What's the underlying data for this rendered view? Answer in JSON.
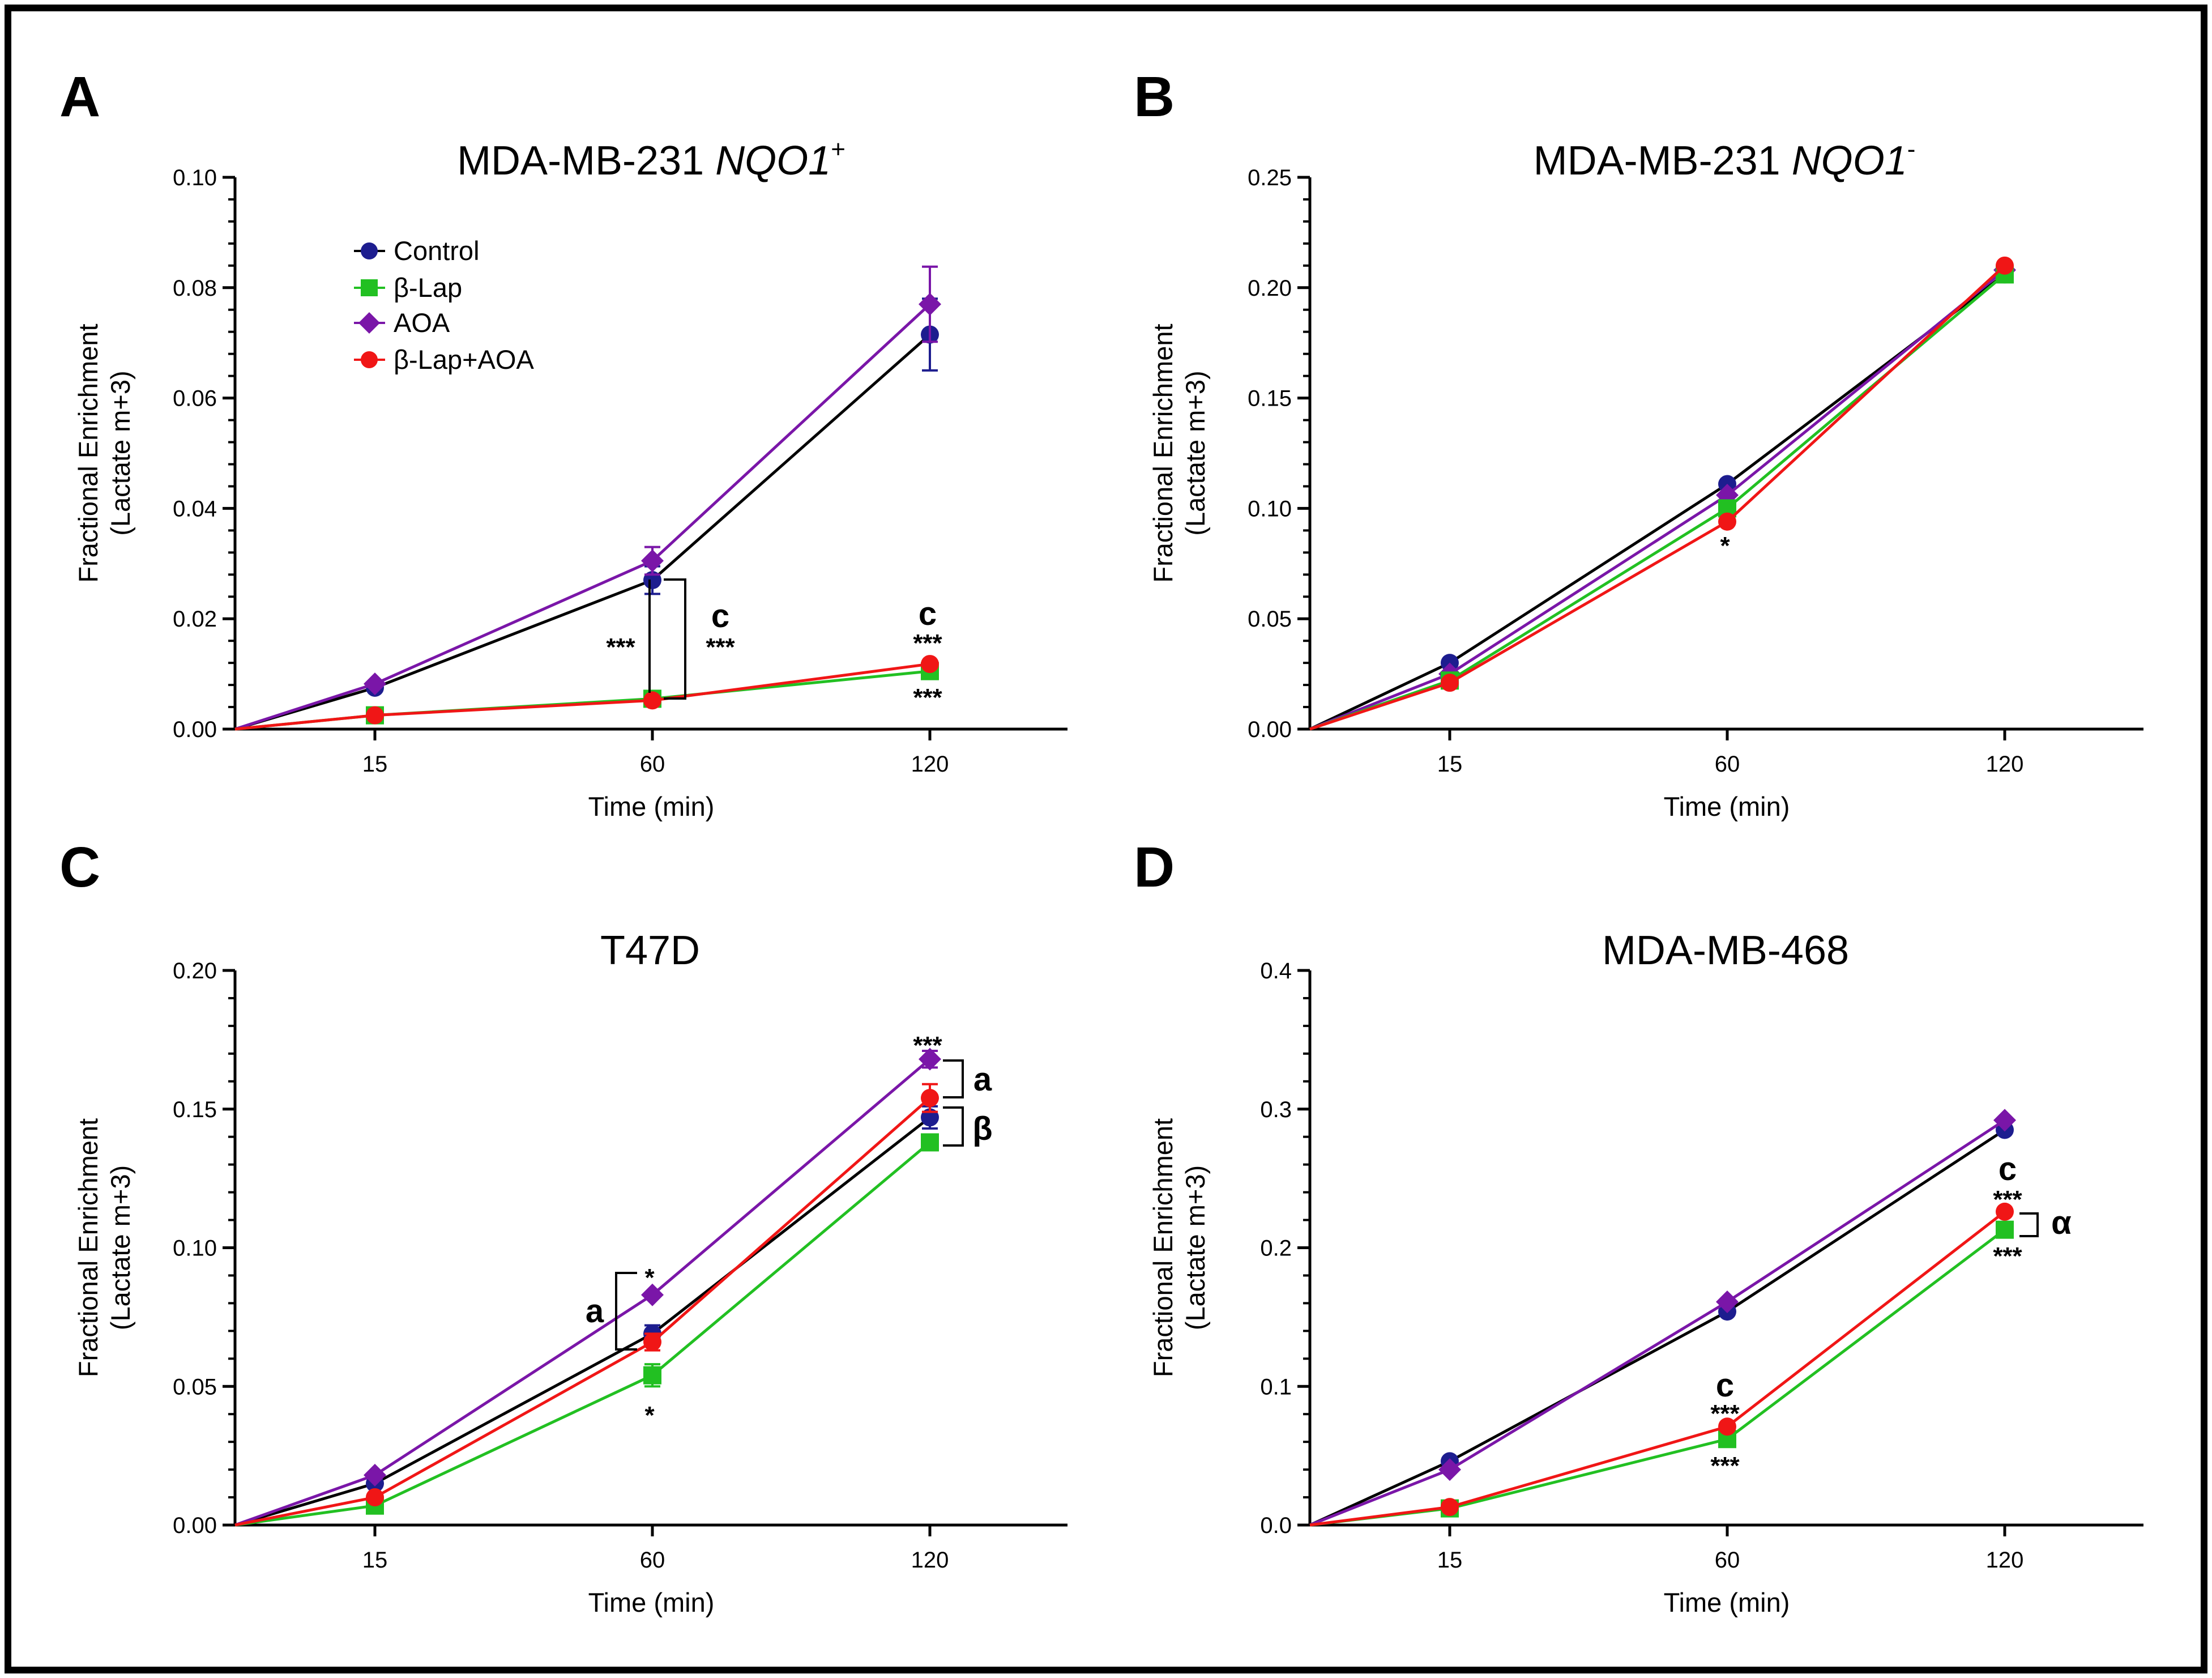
{
  "colors": {
    "Control": "#1d1d8f",
    "β-Lap": "#22c022",
    "AOA": "#7a16a8",
    "β-Lap+AOA": "#f01616"
  },
  "legend": {
    "items": [
      {
        "name": "Control",
        "marker": "circle"
      },
      {
        "name": "β-Lap",
        "marker": "square"
      },
      {
        "name": "AOA",
        "marker": "diamond"
      },
      {
        "name": "β-Lap+AOA",
        "marker": "circle"
      }
    ]
  },
  "chart_data": [
    {
      "panel": "A",
      "type": "line",
      "title": "MDA-MB-231",
      "title_italic": "NQO1",
      "title_sup": "+",
      "xlabel": "Time (min)",
      "ylabel_lines": [
        "Fractional Enrichment",
        "(Lactate m+3)"
      ],
      "x_ticks": [
        "15",
        "60",
        "120"
      ],
      "y_ticks": [
        "0.00",
        "0.02",
        "0.04",
        "0.06",
        "0.08",
        "0.10"
      ],
      "ylim": [
        0,
        0.1
      ],
      "series": [
        {
          "name": "Control",
          "values": [
            0,
            0.0075,
            0.027,
            0.0715
          ],
          "errors": [
            0,
            0,
            0.0025,
            0.0065
          ]
        },
        {
          "name": "β-Lap",
          "values": [
            0,
            0.0025,
            0.0055,
            0.0105
          ],
          "errors": [
            0,
            0,
            0,
            0
          ]
        },
        {
          "name": "AOA",
          "values": [
            0,
            0.0082,
            0.0305,
            0.077
          ],
          "errors": [
            0,
            0,
            0.0025,
            0.0068
          ]
        },
        {
          "name": "β-Lap+AOA",
          "values": [
            0,
            0.0025,
            0.0052,
            0.0118
          ],
          "errors": [
            0,
            0,
            0,
            0
          ]
        }
      ],
      "annotations": [
        "***",
        "c",
        "***",
        "c",
        "***",
        "***"
      ]
    },
    {
      "panel": "B",
      "type": "line",
      "title": "MDA-MB-231",
      "title_italic": "NQO1",
      "title_sup": "-",
      "xlabel": "Time (min)",
      "ylabel_lines": [
        "Fractional Enrichment",
        "(Lactate m+3)"
      ],
      "x_ticks": [
        "15",
        "60",
        "120"
      ],
      "y_ticks": [
        "0.00",
        "0.05",
        "0.10",
        "0.15",
        "0.20",
        "0.25"
      ],
      "ylim": [
        0,
        0.25
      ],
      "series": [
        {
          "name": "Control",
          "values": [
            0,
            0.03,
            0.111,
            0.206
          ],
          "errors": [
            0,
            0,
            0,
            0
          ]
        },
        {
          "name": "β-Lap",
          "values": [
            0,
            0.022,
            0.1,
            0.206
          ],
          "errors": [
            0,
            0,
            0,
            0
          ]
        },
        {
          "name": "AOA",
          "values": [
            0,
            0.025,
            0.106,
            0.208
          ],
          "errors": [
            0,
            0,
            0,
            0
          ]
        },
        {
          "name": "β-Lap+AOA",
          "values": [
            0,
            0.021,
            0.094,
            0.21
          ],
          "errors": [
            0,
            0,
            0,
            0
          ]
        }
      ],
      "annotations": [
        "*"
      ]
    },
    {
      "panel": "C",
      "type": "line",
      "title": "T47D",
      "xlabel": "Time (min)",
      "ylabel_lines": [
        "Fractional Enrichment",
        "(Lactate m+3)"
      ],
      "x_ticks": [
        "15",
        "60",
        "120"
      ],
      "y_ticks": [
        "0.00",
        "0.05",
        "0.10",
        "0.15",
        "0.20"
      ],
      "ylim": [
        0,
        0.2
      ],
      "series": [
        {
          "name": "Control",
          "values": [
            0,
            0.015,
            0.069,
            0.147
          ],
          "errors": [
            0,
            0,
            0.003,
            0.004
          ]
        },
        {
          "name": "β-Lap",
          "values": [
            0,
            0.007,
            0.054,
            0.138
          ],
          "errors": [
            0,
            0,
            0.004,
            0
          ]
        },
        {
          "name": "AOA",
          "values": [
            0,
            0.018,
            0.083,
            0.168
          ],
          "errors": [
            0,
            0,
            0,
            0.003
          ]
        },
        {
          "name": "β-Lap+AOA",
          "values": [
            0,
            0.01,
            0.066,
            0.154
          ],
          "errors": [
            0,
            0,
            0.003,
            0.005
          ]
        }
      ],
      "annotations": [
        "*",
        "a",
        "*",
        "***",
        "a",
        "β"
      ]
    },
    {
      "panel": "D",
      "type": "line",
      "title": "MDA-MB-468",
      "xlabel": "Time (min)",
      "ylabel_lines": [
        "Fractional Enrichment",
        "(Lactate m+3)"
      ],
      "x_ticks": [
        "15",
        "60",
        "120"
      ],
      "y_ticks": [
        "0.0",
        "0.1",
        "0.2",
        "0.3",
        "0.4"
      ],
      "ylim": [
        0,
        0.4
      ],
      "series": [
        {
          "name": "Control",
          "values": [
            0,
            0.046,
            0.154,
            0.285
          ],
          "errors": [
            0,
            0,
            0,
            0
          ]
        },
        {
          "name": "β-Lap",
          "values": [
            0,
            0.012,
            0.062,
            0.213
          ],
          "errors": [
            0,
            0,
            0,
            0
          ]
        },
        {
          "name": "AOA",
          "values": [
            0,
            0.04,
            0.161,
            0.292
          ],
          "errors": [
            0,
            0,
            0,
            0
          ]
        },
        {
          "name": "β-Lap+AOA",
          "values": [
            0,
            0.013,
            0.071,
            0.226
          ],
          "errors": [
            0,
            0,
            0,
            0
          ]
        }
      ],
      "annotations": [
        "c",
        "***",
        "***",
        "c",
        "***",
        "α",
        "***"
      ]
    }
  ]
}
